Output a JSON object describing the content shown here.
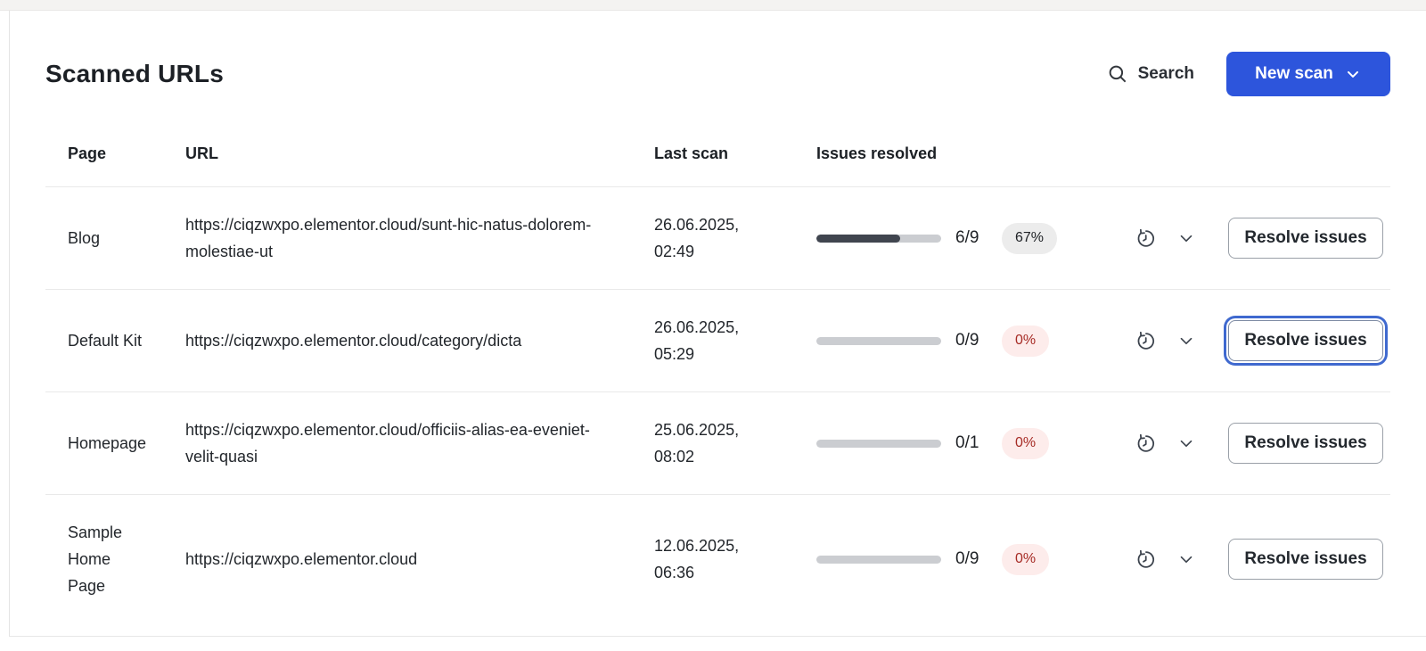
{
  "page": {
    "title": "Scanned URLs"
  },
  "toolbar": {
    "search_label": "Search",
    "new_scan_label": "New scan",
    "search_icon": "magnifier",
    "new_scan_chevron_icon": "chevron-down"
  },
  "table": {
    "headers": {
      "page": "Page",
      "url": "URL",
      "last_scan": "Last scan",
      "issues_resolved": "Issues resolved"
    },
    "row_icons": [
      "scan-history",
      "chevron-down"
    ],
    "rows": [
      {
        "page": "Blog",
        "url": "https://ciqzwxpo.elementor.cloud/sunt-hic-natus-dolorem-molestiae-ut",
        "last_scan": "26.06.2025, 02:49",
        "resolved": "6/9",
        "percent": "67%",
        "percent_value": 67,
        "badge_type": "neutral",
        "resolve_label": "Resolve issues",
        "focused": false
      },
      {
        "page": "Default Kit",
        "url": "https://ciqzwxpo.elementor.cloud/category/dicta",
        "last_scan": "26.06.2025, 05:29",
        "resolved": "0/9",
        "percent": "0%",
        "percent_value": 0,
        "badge_type": "error",
        "resolve_label": "Resolve issues",
        "focused": true
      },
      {
        "page": "Homepage",
        "url": "https://ciqzwxpo.elementor.cloud/officiis-alias-ea-eveniet-velit-quasi",
        "last_scan": "25.06.2025, 08:02",
        "resolved": "0/1",
        "percent": "0%",
        "percent_value": 0,
        "badge_type": "error",
        "resolve_label": "Resolve issues",
        "focused": false
      },
      {
        "page": "Sample Home Page",
        "url": "https://ciqzwxpo.elementor.cloud",
        "last_scan": "12.06.2025, 06:36",
        "resolved": "0/9",
        "percent": "0%",
        "percent_value": 0,
        "badge_type": "error",
        "resolve_label": "Resolve issues",
        "focused": false
      }
    ]
  },
  "colors": {
    "accent_blue": "#2d55dc",
    "progress_fill": "#40454f",
    "badge_neutral_bg": "#ececec",
    "badge_error_bg": "#fdeceb",
    "badge_error_text": "#a62b25",
    "focus_ring": "#3f69cf"
  }
}
